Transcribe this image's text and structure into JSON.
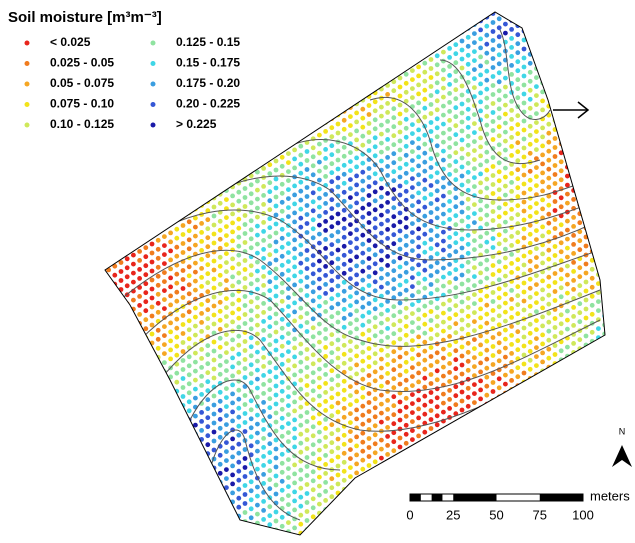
{
  "title": "Soil moisture [m³m⁻³]",
  "legend": [
    {
      "label": "< 0.025",
      "color": "#e8251c"
    },
    {
      "label": "0.025 - 0.05",
      "color": "#f07c1e"
    },
    {
      "label": "0.05 - 0.075",
      "color": "#f5a623"
    },
    {
      "label": "0.075 - 0.10",
      "color": "#f2e31a"
    },
    {
      "label": "0.10 - 0.125",
      "color": "#cfe85a"
    },
    {
      "label": "0.125 - 0.15",
      "color": "#8fe3a0"
    },
    {
      "label": "0.15 - 0.175",
      "color": "#3fd6e6"
    },
    {
      "label": "0.175 - 0.20",
      "color": "#3a9ee0"
    },
    {
      "label": "0.20 - 0.225",
      "color": "#3557d6"
    },
    {
      "label": "> 0.225",
      "color": "#1a1aa8"
    }
  ],
  "scale_bar": {
    "ticks": [
      0,
      25,
      50,
      75,
      100
    ],
    "unit": "meters"
  },
  "north": "N"
}
